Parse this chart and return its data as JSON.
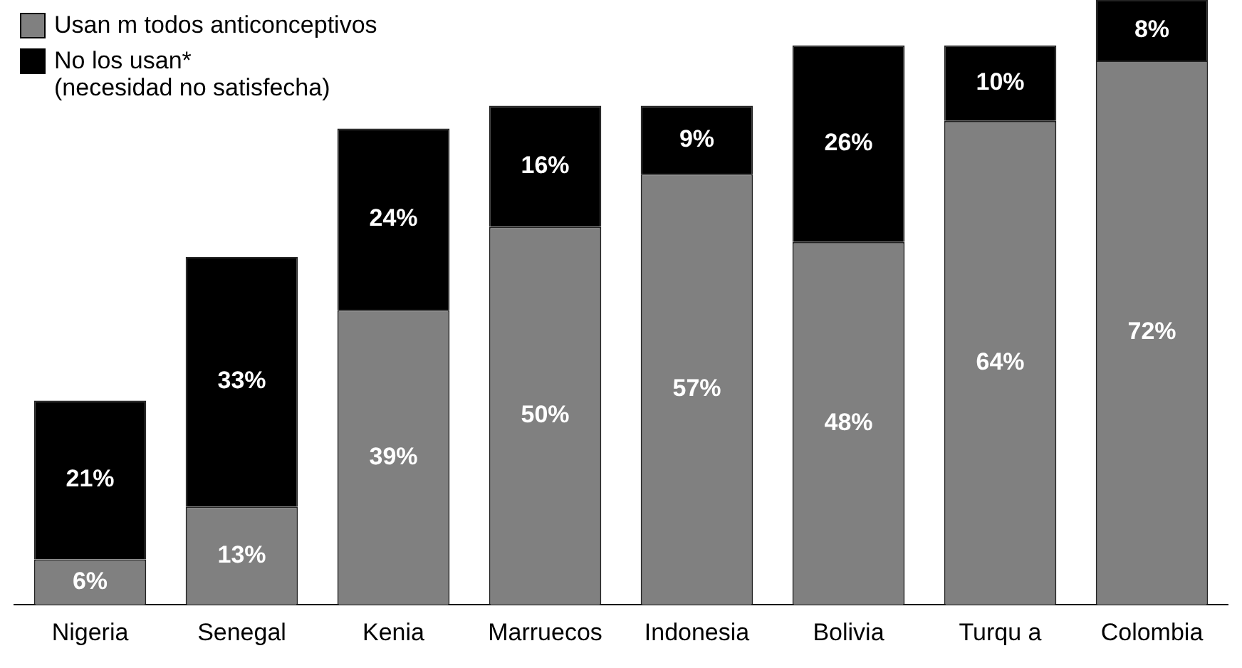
{
  "chart_data": {
    "type": "bar",
    "stacked": true,
    "categories": [
      "Nigeria",
      "Senegal",
      "Kenia",
      "Marruecos",
      "Indonesia",
      "Bolivia",
      "Turqu a",
      "Colombia"
    ],
    "series": [
      {
        "name": "Usan m todos anticonceptivos",
        "color": "#808080",
        "values": [
          6,
          13,
          39,
          50,
          57,
          48,
          64,
          72
        ],
        "value_labels": [
          "6%",
          "13%",
          "39%",
          "50%",
          "57%",
          "48%",
          "64%",
          "72%"
        ]
      },
      {
        "name": "No los usan*\n(necesidad no satisfecha)",
        "color": "#000000",
        "values": [
          21,
          33,
          24,
          16,
          9,
          26,
          10,
          8
        ],
        "value_labels": [
          "21%",
          "33%",
          "24%",
          "16%",
          "9%",
          "26%",
          "10%",
          "8%"
        ]
      }
    ],
    "tick_labels": "x",
    "legend": "top left"
  }
}
